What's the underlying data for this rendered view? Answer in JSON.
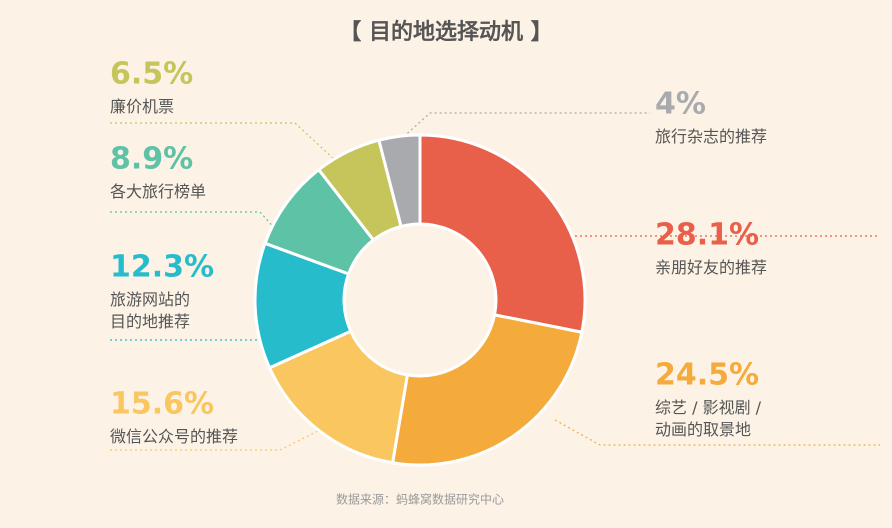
{
  "chart_data": {
    "type": "donut",
    "title": "【 目的地选择动机 】",
    "categories": [
      "亲朋好友的推荐",
      "综艺 / 影视剧 /\n动画的取景地",
      "微信公众号的推荐",
      "旅游网站的\n目的地推荐",
      "各大旅行榜单",
      "廉价机票",
      "旅行杂志的推荐"
    ],
    "values": [
      28.1,
      24.5,
      15.6,
      12.3,
      8.9,
      6.5,
      4
    ],
    "value_labels": [
      "28.1%",
      "24.5%",
      "15.6%",
      "12.3%",
      "8.9%",
      "6.5%",
      "4%"
    ],
    "colors": [
      "#e8604a",
      "#f5aa3c",
      "#f9c660",
      "#27bccc",
      "#5ec2a6",
      "#c6c55c",
      "#a9aaad"
    ],
    "source": "数据来源：蚂蜂窝数据研究中心"
  }
}
